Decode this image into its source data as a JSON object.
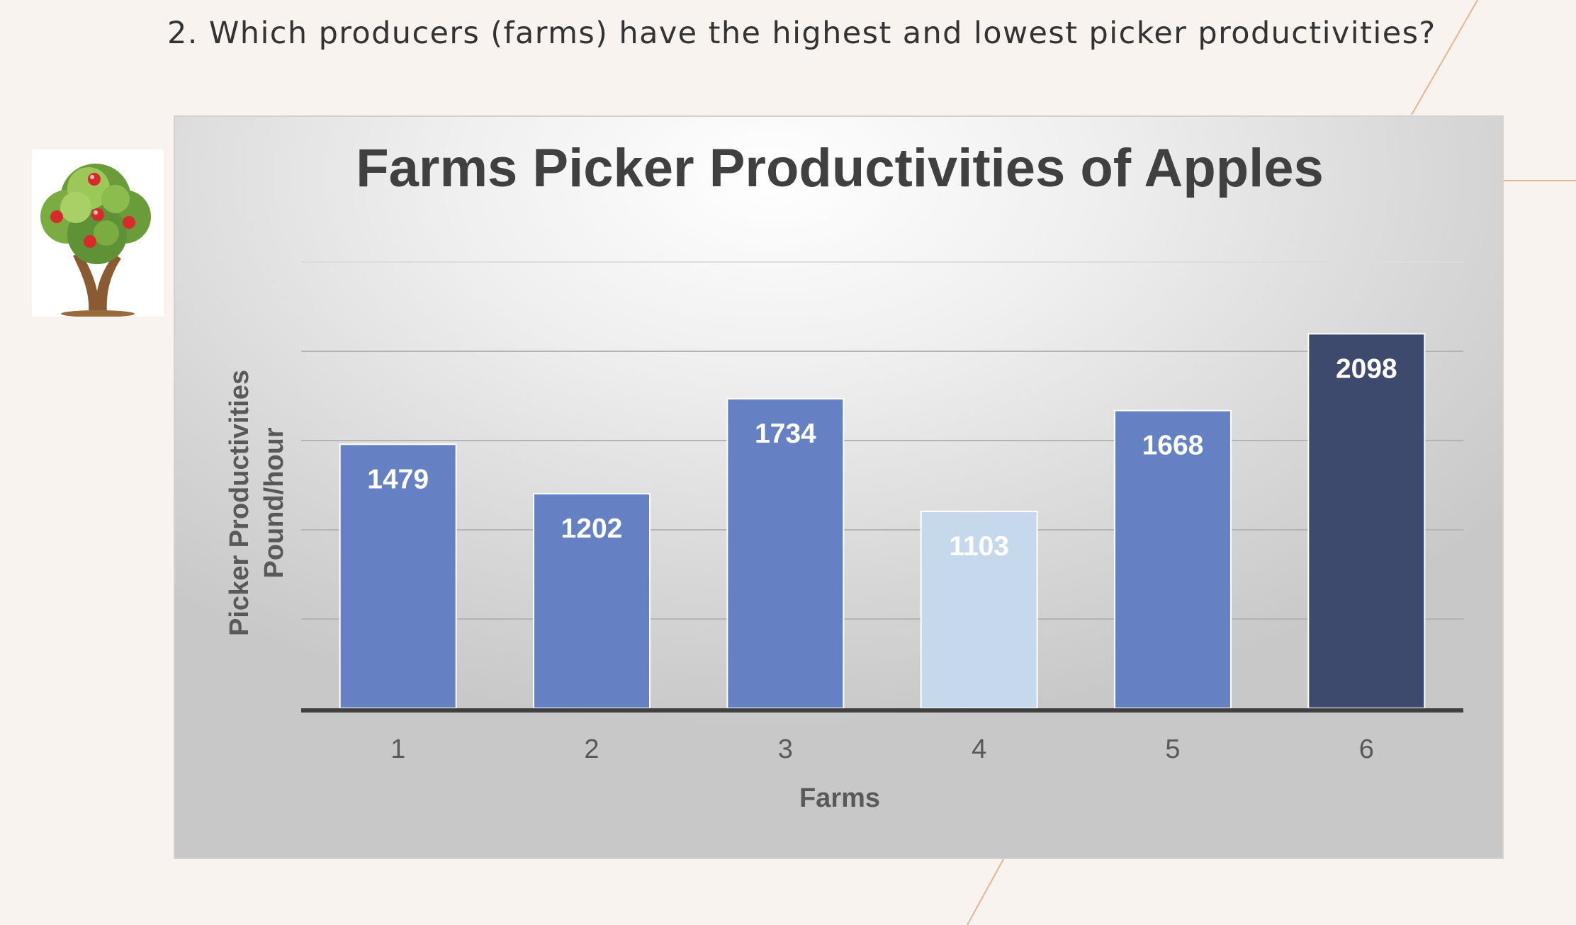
{
  "question": "2. Which producers (farms) have the highest and lowest picker productivities?",
  "colors": {
    "background": "#f8f3ef",
    "bar_default": "#6681c3",
    "bar_highest": "#3d4a6e",
    "bar_lowest": "#c6d8ec",
    "decor_line": "#e8b48e"
  },
  "icons": {
    "illustration": "apple-tree-icon"
  },
  "chart_data": {
    "type": "bar",
    "title": "Farms Picker Productivities of Apples",
    "xlabel": "Farms",
    "ylabel_line1": "Picker Productivities",
    "ylabel_line2": "Pound/hour",
    "categories": [
      "1",
      "2",
      "3",
      "4",
      "5",
      "6"
    ],
    "values": [
      1479,
      1202,
      1734,
      1103,
      1668,
      2098
    ],
    "data_labels": [
      "1479",
      "1202",
      "1734",
      "1103",
      "1668",
      "2098"
    ],
    "ylim": [
      0,
      2500
    ],
    "gridlines": [
      0,
      500,
      1000,
      1500,
      2000,
      2500
    ],
    "grid": true,
    "y_tick_labels_shown": false,
    "highlight": {
      "highest_index": 5,
      "lowest_index": 3
    }
  }
}
